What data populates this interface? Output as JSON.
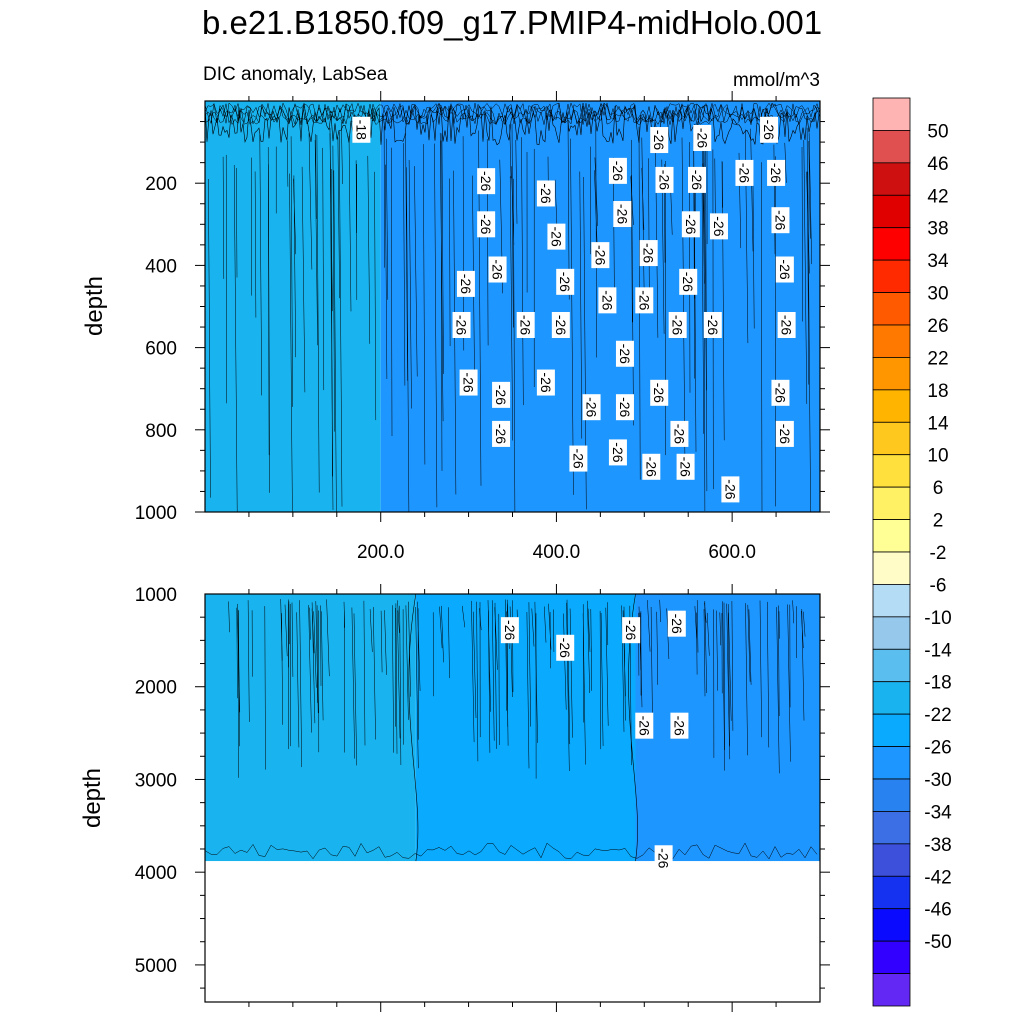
{
  "title": "b.e21.B1850.f09_g17.PMIP4-midHolo.001",
  "chart_data": [
    {
      "type": "heatmap",
      "panel": "upper",
      "subtitle_left": "DIC anomaly, LabSea",
      "subtitle_right": "mmol/m^3",
      "ylabel": "depth",
      "xlim": [
        0,
        700
      ],
      "ylim": [
        0,
        1000
      ],
      "y_reversed": true,
      "xticks": [
        200,
        400,
        600
      ],
      "xtick_labels": [
        "200.0",
        "400.0",
        "600.0"
      ],
      "yticks": [
        200,
        400,
        600,
        800,
        1000
      ],
      "ytick_labels": [
        "200",
        "400",
        "600",
        "800",
        "1000"
      ],
      "regions": [
        {
          "x": [
            0,
            200
          ],
          "value": -20
        },
        {
          "x": [
            200,
            700
          ],
          "value": -28
        }
      ],
      "contour_labels": [
        {
          "x": 178,
          "y": 70,
          "text": "-18"
        },
        {
          "x": 320,
          "y": 195,
          "text": "-26"
        },
        {
          "x": 388,
          "y": 225,
          "text": "-26"
        },
        {
          "x": 470,
          "y": 170,
          "text": "-26"
        },
        {
          "x": 517,
          "y": 95,
          "text": "-26"
        },
        {
          "x": 566,
          "y": 90,
          "text": "-26"
        },
        {
          "x": 642,
          "y": 70,
          "text": "-26"
        },
        {
          "x": 523,
          "y": 192,
          "text": "-26"
        },
        {
          "x": 560,
          "y": 192,
          "text": "-26"
        },
        {
          "x": 614,
          "y": 175,
          "text": "-26"
        },
        {
          "x": 650,
          "y": 175,
          "text": "-26"
        },
        {
          "x": 320,
          "y": 300,
          "text": "-26"
        },
        {
          "x": 475,
          "y": 275,
          "text": "-26"
        },
        {
          "x": 553,
          "y": 300,
          "text": "-26"
        },
        {
          "x": 585,
          "y": 305,
          "text": "-26"
        },
        {
          "x": 655,
          "y": 290,
          "text": "-26"
        },
        {
          "x": 400,
          "y": 330,
          "text": "-26"
        },
        {
          "x": 450,
          "y": 375,
          "text": "-26"
        },
        {
          "x": 505,
          "y": 370,
          "text": "-26"
        },
        {
          "x": 333,
          "y": 410,
          "text": "-26"
        },
        {
          "x": 297,
          "y": 445,
          "text": "-26"
        },
        {
          "x": 410,
          "y": 440,
          "text": "-26"
        },
        {
          "x": 550,
          "y": 440,
          "text": "-26"
        },
        {
          "x": 660,
          "y": 410,
          "text": "-26"
        },
        {
          "x": 458,
          "y": 485,
          "text": "-26"
        },
        {
          "x": 500,
          "y": 485,
          "text": "-26"
        },
        {
          "x": 292,
          "y": 545,
          "text": "-26"
        },
        {
          "x": 365,
          "y": 545,
          "text": "-26"
        },
        {
          "x": 405,
          "y": 545,
          "text": "-26"
        },
        {
          "x": 538,
          "y": 545,
          "text": "-26"
        },
        {
          "x": 578,
          "y": 545,
          "text": "-26"
        },
        {
          "x": 662,
          "y": 545,
          "text": "-26"
        },
        {
          "x": 478,
          "y": 615,
          "text": "-26"
        },
        {
          "x": 300,
          "y": 685,
          "text": "-26"
        },
        {
          "x": 388,
          "y": 685,
          "text": "-26"
        },
        {
          "x": 337,
          "y": 715,
          "text": "-26"
        },
        {
          "x": 440,
          "y": 745,
          "text": "-26"
        },
        {
          "x": 478,
          "y": 745,
          "text": "-26"
        },
        {
          "x": 517,
          "y": 710,
          "text": "-26"
        },
        {
          "x": 655,
          "y": 710,
          "text": "-26"
        },
        {
          "x": 337,
          "y": 810,
          "text": "-26"
        },
        {
          "x": 540,
          "y": 810,
          "text": "-26"
        },
        {
          "x": 660,
          "y": 810,
          "text": "-26"
        },
        {
          "x": 425,
          "y": 870,
          "text": "-26"
        },
        {
          "x": 470,
          "y": 855,
          "text": "-26"
        },
        {
          "x": 508,
          "y": 890,
          "text": "-26"
        },
        {
          "x": 547,
          "y": 890,
          "text": "-26"
        },
        {
          "x": 598,
          "y": 945,
          "text": "-26"
        }
      ]
    },
    {
      "type": "heatmap",
      "panel": "lower",
      "ylabel": "depth",
      "xlim": [
        0,
        700
      ],
      "ylim": [
        1000,
        5400
      ],
      "y_reversed": true,
      "yticks": [
        1000,
        2000,
        3000,
        4000,
        5000
      ],
      "ytick_labels": [
        "1000",
        "2000",
        "3000",
        "4000",
        "5000"
      ],
      "data_bottom": 3880,
      "regions": [
        {
          "x": [
            0,
            240
          ],
          "value": -20
        },
        {
          "x": [
            240,
            490
          ],
          "value": -24
        },
        {
          "x": [
            490,
            700
          ],
          "value": -28
        }
      ],
      "contour_labels": [
        {
          "x": 347,
          "y": 1390,
          "text": "-26"
        },
        {
          "x": 410,
          "y": 1580,
          "text": "-26"
        },
        {
          "x": 485,
          "y": 1390,
          "text": "-26"
        },
        {
          "x": 537,
          "y": 1320,
          "text": "-26"
        },
        {
          "x": 500,
          "y": 2420,
          "text": "-26"
        },
        {
          "x": 540,
          "y": 2420,
          "text": "-26"
        },
        {
          "x": 522,
          "y": 3850,
          "text": "-26"
        }
      ]
    }
  ],
  "colorbar": {
    "levels": [
      "50",
      "46",
      "42",
      "38",
      "34",
      "30",
      "26",
      "22",
      "18",
      "14",
      "10",
      "6",
      "2",
      "-2",
      "-6",
      "-10",
      "-14",
      "-18",
      "-22",
      "-26",
      "-30",
      "-34",
      "-38",
      "-42",
      "-46",
      "-50"
    ],
    "colors": [
      "#ffb4b4",
      "#e05050",
      "#cf1010",
      "#e00000",
      "#ff0000",
      "#ff2a00",
      "#ff5a00",
      "#ff7800",
      "#ff9600",
      "#ffb400",
      "#ffc81e",
      "#ffe03c",
      "#fff064",
      "#ffff96",
      "#fffcc8",
      "#b4dcf5",
      "#96c8eb",
      "#5abeee",
      "#19b4f0",
      "#0aaaff",
      "#1e96ff",
      "#2882f0",
      "#3c6ee6",
      "#3c50dc",
      "#1432f0",
      "#0a0aff",
      "#3200ff",
      "#6428f5"
    ]
  },
  "colors": {
    "left_region": "#0aaaff",
    "mid_region": "#1e96ff",
    "right_region": "#2882f0"
  }
}
